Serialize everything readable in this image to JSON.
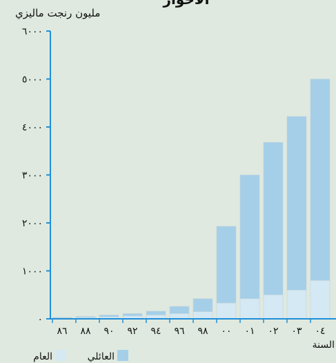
{
  "colors": {
    "background": "#dfe9df",
    "axis": "#1f8ed8",
    "bar_dark": "#a5cfe8",
    "bar_light": "#d4e9f4",
    "bar_edge": "#c4d4dc",
    "text": "#111111"
  },
  "chart_data": {
    "type": "bar",
    "title": "الأخوار",
    "ylabel": "مليون رنجت ماليزي",
    "xlabel": "السنة",
    "ylim": [
      0,
      6000
    ],
    "yticks": [
      0,
      1000,
      2000,
      3000,
      4000,
      5000,
      6000
    ],
    "ytick_labels": [
      "٠",
      "١٠٠٠",
      "٢٠٠٠",
      "٣٠٠٠",
      "٤٠٠٠",
      "٥٠٠٠",
      "٦٠٠٠"
    ],
    "categories": [
      "٨٦",
      "٨٨",
      "٩٠",
      "٩٢",
      "٩٤",
      "٩٦",
      "٩٨",
      "٠٠",
      "٠١",
      "٠٢",
      "٠٣",
      "٠٤"
    ],
    "series": [
      {
        "name": "العام",
        "color": "#d4e9f4",
        "values": [
          20,
          30,
          40,
          60,
          80,
          110,
          150,
          330,
          420,
          500,
          600,
          800
        ]
      },
      {
        "name": "العائلي",
        "color": "#a5cfe8",
        "values": [
          10,
          20,
          40,
          50,
          80,
          150,
          270,
          1600,
          2580,
          3180,
          3620,
          4200
        ]
      }
    ],
    "stacked": true,
    "legend": {
      "position": "bottom",
      "order": [
        "العائلي",
        "العام"
      ]
    }
  }
}
